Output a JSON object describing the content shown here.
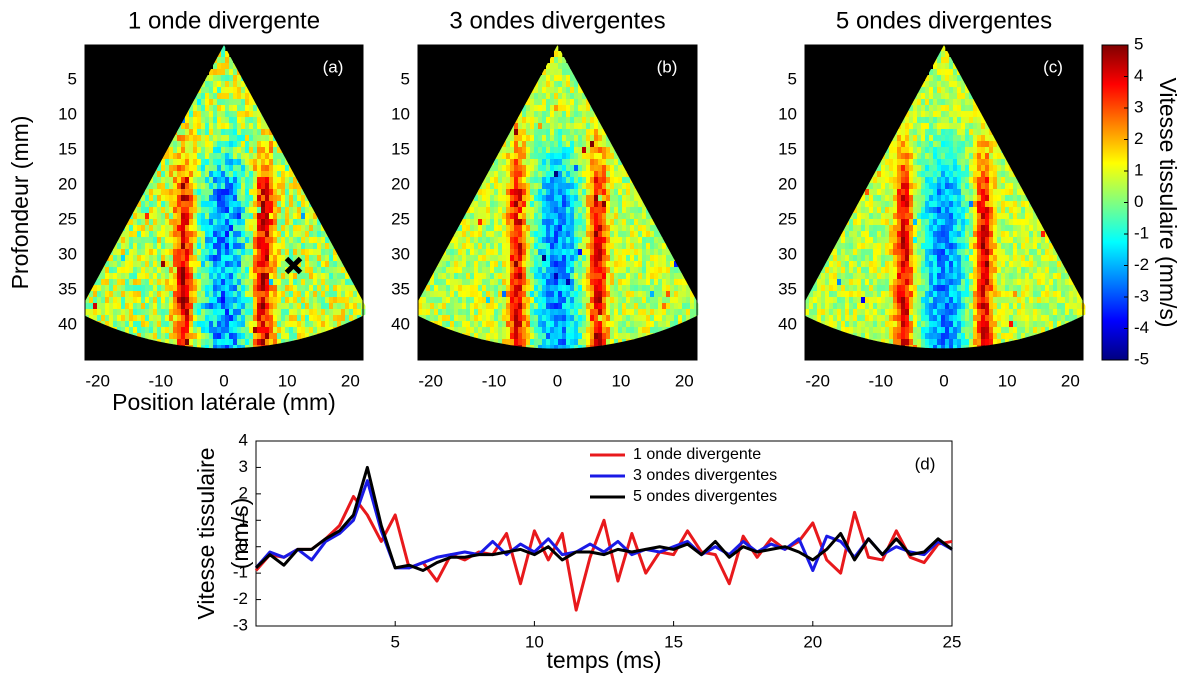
{
  "chart_data": [
    {
      "type": "image",
      "title": "1 onde divergente",
      "annotation": "(a)",
      "xlabel": "Position latérale (mm)",
      "ylabel": "Profondeur (mm)",
      "xlim": [
        -22,
        22
      ],
      "ylim": [
        45,
        0
      ],
      "xticks": [
        -20,
        -10,
        0,
        10,
        20
      ],
      "yticks": [
        5,
        10,
        15,
        20,
        25,
        30,
        35,
        40
      ],
      "marker": {
        "x": 11,
        "y": 31.5
      }
    },
    {
      "type": "image",
      "title": "3 ondes divergentes",
      "annotation": "(b)",
      "xlim": [
        -22,
        22
      ],
      "ylim": [
        45,
        0
      ],
      "xticks": [
        -20,
        -10,
        0,
        10,
        20
      ],
      "yticks": [
        5,
        10,
        15,
        20,
        25,
        30,
        35,
        40
      ]
    },
    {
      "type": "image",
      "title": "5 ondes divergentes",
      "annotation": "(c)",
      "xlim": [
        -22,
        22
      ],
      "ylim": [
        45,
        0
      ],
      "xticks": [
        -20,
        -10,
        0,
        10,
        20
      ],
      "yticks": [
        5,
        10,
        15,
        20,
        25,
        30,
        35,
        40
      ]
    },
    {
      "type": "colorbar",
      "label": "Vitesse tissulaire (mm/s)",
      "ylim": [
        -5,
        5
      ],
      "yticks": [
        -5,
        -4,
        -3,
        -2,
        -1,
        0,
        1,
        2,
        3,
        4,
        5
      ]
    },
    {
      "type": "line",
      "annotation": "(d)",
      "xlabel": "temps (ms)",
      "ylabel": [
        "Vitesse tissulaire",
        "(mm/s)"
      ],
      "xlim": [
        0,
        25
      ],
      "ylim": [
        -3,
        4
      ],
      "xticks": [
        5,
        10,
        15,
        20,
        25
      ],
      "yticks": [
        -3,
        -2,
        -1,
        0,
        1,
        2,
        3,
        4
      ],
      "legend": "upper right",
      "x": [
        0,
        0.5,
        1,
        1.5,
        2,
        2.5,
        3,
        3.5,
        4,
        4.5,
        5,
        5.5,
        6,
        6.5,
        7,
        7.5,
        8,
        8.5,
        9,
        9.5,
        10,
        10.5,
        11,
        11.5,
        12,
        12.5,
        13,
        13.5,
        14,
        14.5,
        15,
        15.5,
        16,
        16.5,
        17,
        17.5,
        18,
        18.5,
        19,
        19.5,
        20,
        20.5,
        21,
        21.5,
        22,
        22.5,
        23,
        23.5,
        24,
        24.5,
        25
      ],
      "series": [
        {
          "name": "1 onde divergente",
          "color": "#e8191c",
          "values": [
            -0.9,
            -0.3,
            -0.4,
            -0.1,
            -0.1,
            0.3,
            0.8,
            1.9,
            1.2,
            0.2,
            1.2,
            -0.8,
            -0.6,
            -1.3,
            -0.3,
            -0.5,
            -0.2,
            -0.3,
            0.5,
            -1.4,
            0.6,
            -0.5,
            0.5,
            -2.4,
            -0.4,
            1.0,
            -1.3,
            0.5,
            -1.0,
            -0.2,
            -0.3,
            0.6,
            -0.2,
            -0.3,
            -1.4,
            0.4,
            -0.4,
            0.3,
            -0.1,
            0.2,
            0.9,
            -0.5,
            -1.0,
            1.3,
            -0.4,
            -0.5,
            0.6,
            -0.4,
            -0.6,
            0.1,
            0.2
          ]
        },
        {
          "name": "3 ondes divergentes",
          "color": "#1a1ae6",
          "values": [
            -0.8,
            -0.2,
            -0.4,
            -0.1,
            -0.5,
            0.2,
            0.5,
            1.0,
            2.5,
            0.6,
            -0.8,
            -0.8,
            -0.6,
            -0.4,
            -0.3,
            -0.2,
            -0.3,
            0.2,
            -0.3,
            0.1,
            -0.2,
            0.3,
            -0.3,
            -0.2,
            0.1,
            -0.2,
            0.2,
            -0.3,
            -0.1,
            -0.2,
            0.0,
            0.2,
            -0.3,
            0.0,
            -0.3,
            0.2,
            -0.2,
            0.1,
            -0.1,
            0.3,
            -0.9,
            0.4,
            0.2,
            -0.4,
            0.3,
            -0.3,
            0.0,
            -0.2,
            -0.3,
            0.2,
            -0.1
          ]
        },
        {
          "name": "5 ondes divergentes",
          "color": "#000000",
          "values": [
            -0.8,
            -0.3,
            -0.7,
            -0.1,
            -0.1,
            0.3,
            0.6,
            1.2,
            3.0,
            0.8,
            -0.8,
            -0.7,
            -0.9,
            -0.6,
            -0.4,
            -0.4,
            -0.3,
            -0.3,
            -0.2,
            -0.1,
            -0.3,
            0.0,
            -0.5,
            -0.2,
            -0.2,
            -0.3,
            -0.1,
            -0.2,
            -0.1,
            0.0,
            -0.1,
            0.1,
            -0.3,
            0.2,
            -0.4,
            0.0,
            -0.2,
            -0.1,
            0.0,
            -0.2,
            -0.5,
            -0.1,
            0.5,
            -0.5,
            0.3,
            -0.3,
            0.3,
            -0.3,
            -0.2,
            0.3,
            -0.1
          ]
        }
      ]
    }
  ]
}
